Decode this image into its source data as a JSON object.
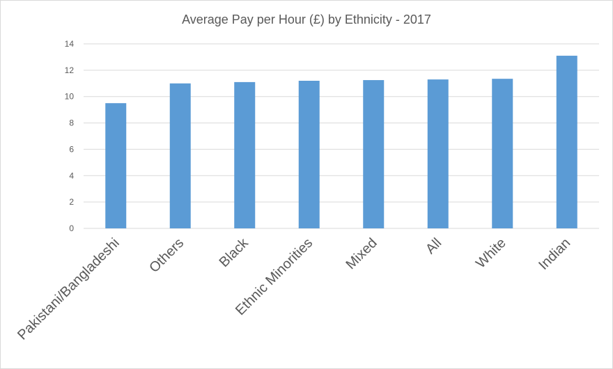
{
  "chart_data": {
    "type": "bar",
    "title": "Average Pay per Hour (£) by Ethnicity - 2017",
    "xlabel": "",
    "ylabel": "",
    "categories": [
      "Pakistani/Bangladeshi",
      "Others",
      "Black",
      "Ethnic Minorities",
      "Mixed",
      "All",
      "White",
      "Indian"
    ],
    "values": [
      9.5,
      11.0,
      11.1,
      11.2,
      11.25,
      11.3,
      11.35,
      13.1
    ],
    "ylim": [
      0,
      14
    ],
    "yticks": [
      "0",
      "2",
      "4",
      "6",
      "8",
      "10",
      "12",
      "14"
    ],
    "grid": true,
    "legend": "none",
    "colors": {
      "bar": "#5b9bd5",
      "grid": "#d9d9d9",
      "text": "#595959"
    }
  }
}
